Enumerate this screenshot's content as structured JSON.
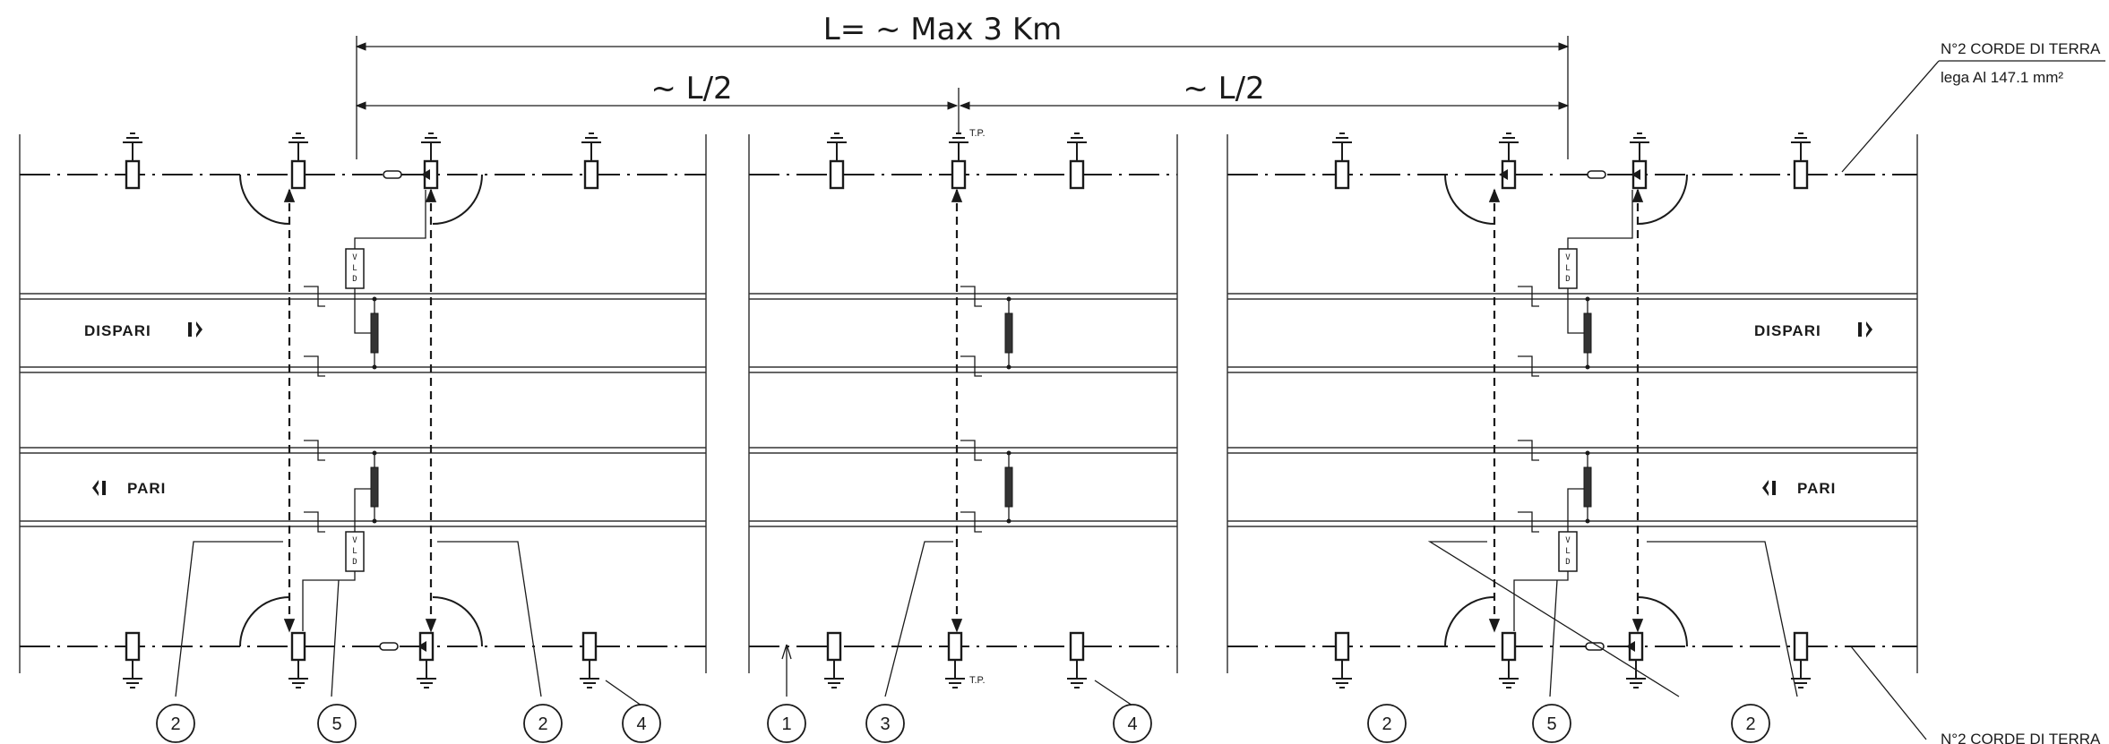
{
  "title": "L= ~ Max 3 Km",
  "half_labels": [
    "~ L/2",
    "~ L/2"
  ],
  "test_point_label": "T.P.",
  "ground_wires_top": {
    "line1": "N°2 CORDE DI TERRA",
    "line2": "lega Al 147.1 mm²"
  },
  "ground_wires_bottom": {
    "line1": "N°2 CORDE DI TERRA"
  },
  "tracks": {
    "dispari": "DISPARI",
    "pari": "PARI"
  },
  "vld_label": "VLD",
  "callouts": [
    "2",
    "5",
    "2",
    "4",
    "1",
    "3",
    "4",
    "2",
    "5",
    "2"
  ]
}
